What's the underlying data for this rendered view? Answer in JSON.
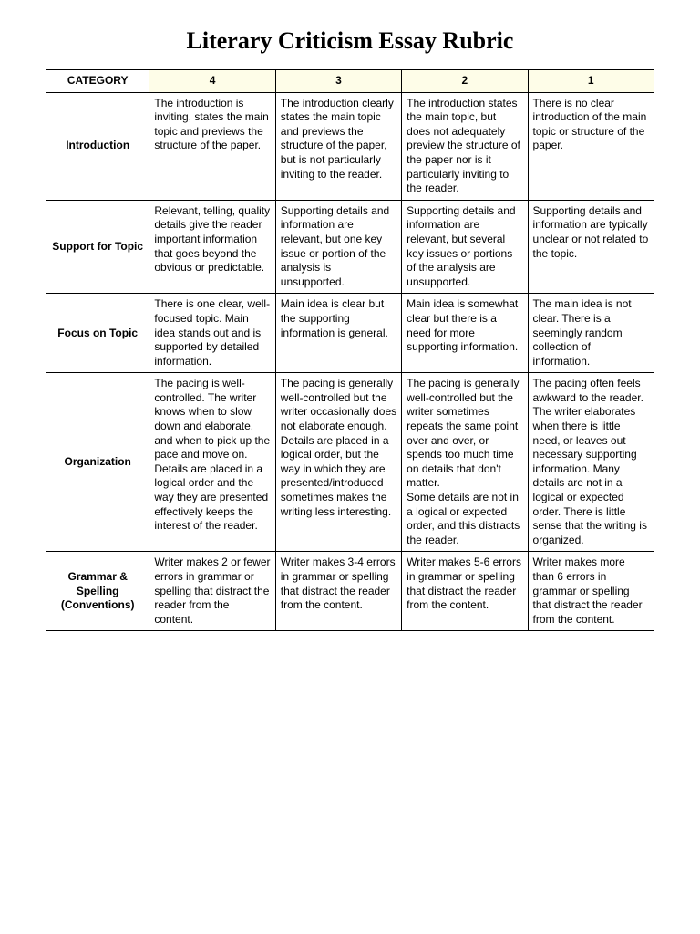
{
  "title": "Literary Criticism Essay Rubric",
  "headers": {
    "category": "CATEGORY",
    "s4": "4",
    "s3": "3",
    "s2": "2",
    "s1": "1"
  },
  "rows": [
    {
      "category": "Introduction",
      "c4": "The introduction is inviting, states the main topic and previews the structure of the paper.",
      "c3": "The introduction clearly states the main topic and previews the structure of the paper, but is not particularly inviting to the reader.",
      "c2": "The introduction states the main topic, but does not adequately preview the structure of the paper nor is it particularly inviting to the reader.",
      "c1": "There is no clear introduction of the main topic or structure of the paper."
    },
    {
      "category": "Support for Topic",
      "c4": "Relevant, telling, quality details give the reader important information that goes beyond the obvious or predictable.",
      "c3": "Supporting details and information are relevant, but one key issue or portion of the analysis is unsupported.",
      "c2": "Supporting details and information are relevant, but several key issues or portions of the analysis are unsupported.",
      "c1": "Supporting details and information are typically unclear or not related to the topic."
    },
    {
      "category": "Focus on Topic",
      "c4": "There is one clear, well-focused topic. Main idea stands out and is supported by detailed information.",
      "c3": "Main idea is clear but the supporting information is general.",
      "c2": "Main idea is somewhat clear but there is a need for more supporting information.",
      "c1": "The main idea is not clear. There is a seemingly random collection of information."
    },
    {
      "category": "Organization",
      "c4": "The pacing is well-controlled. The writer knows when to slow down and elaborate, and when to pick up the pace and move on. Details are placed in a logical order and the way they are presented effectively keeps the interest of the reader.",
      "c3": "The pacing is generally well-controlled but the writer occasionally does not elaborate enough.\nDetails are placed in a logical order, but the way in which they are presented/introduced sometimes makes the writing less interesting.",
      "c2": "The pacing is generally well-controlled but the writer sometimes repeats the same point over and over, or spends too much time on details that don't matter.\nSome details are not in a logical or expected order, and this distracts the reader.",
      "c1": "The pacing often feels awkward to the reader. The writer elaborates when there is little need, or leaves out necessary supporting information. Many details are not in a logical or expected order. There is little sense that the writing is organized."
    },
    {
      "category": "Grammar & Spelling (Conventions)",
      "c4": "Writer makes 2 or fewer errors in grammar or spelling that distract the reader from the content.",
      "c3": "Writer makes 3-4 errors in grammar or spelling that distract the reader from the content.",
      "c2": "Writer makes 5-6 errors in grammar or spelling that distract the reader from the content.",
      "c1": "Writer makes more than 6 errors in grammar or spelling that distract the reader from the content."
    }
  ]
}
